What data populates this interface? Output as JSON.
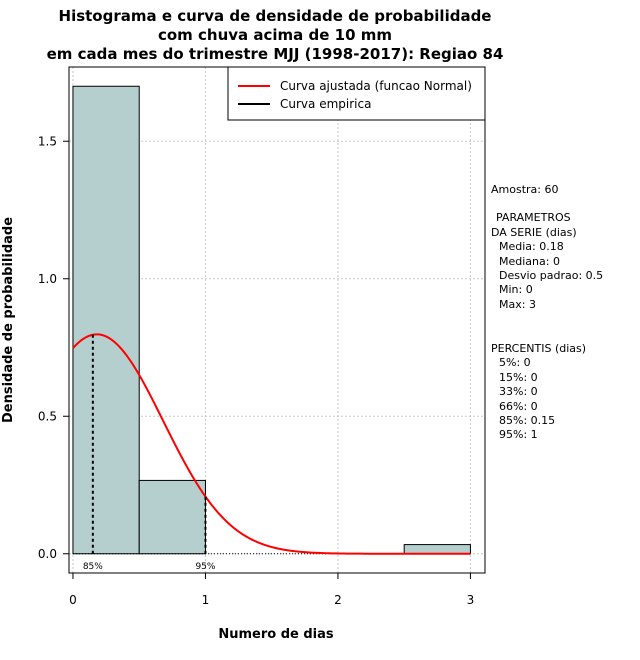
{
  "chart_data": {
    "type": "bar",
    "title": [
      "Histograma e curva de densidade de probabilidade",
      "com chuva acima de 10 mm",
      "em cada mes do trimestre MJJ (1998-2017): Regiao 84"
    ],
    "xlabel": "Numero de dias",
    "ylabel": "Densidade de probabilidade",
    "xlim": [
      -0.03,
      3.11
    ],
    "ylim": [
      -0.07,
      1.77
    ],
    "x_ticks": [
      0,
      1,
      2,
      3
    ],
    "y_ticks": [
      0.0,
      0.5,
      1.0,
      1.5
    ],
    "y_tick_labels": [
      "0.0",
      "0.5",
      "1.0",
      "1.5"
    ],
    "grid": true,
    "bins": [
      {
        "from": 0.0,
        "to": 0.5,
        "density": 1.7
      },
      {
        "from": 0.5,
        "to": 1.0,
        "density": 0.2667
      },
      {
        "from": 1.0,
        "to": 1.5,
        "density": 0.0
      },
      {
        "from": 1.5,
        "to": 2.0,
        "density": 0.0
      },
      {
        "from": 2.0,
        "to": 2.5,
        "density": 0.0
      },
      {
        "from": 2.5,
        "to": 3.0,
        "density": 0.0333
      }
    ],
    "fitted_curve": {
      "name": "Curva ajustada (funcao Normal)",
      "mean": 0.18,
      "sd": 0.5,
      "x_from": 0.0,
      "x_to": 3.0,
      "color": "#ff0000"
    },
    "empirical_curve": {
      "name": "Curva empirica",
      "color": "#000000"
    },
    "percentile_markers": [
      {
        "label": "85%",
        "x": 0.15
      },
      {
        "label": "95%",
        "x": 1.0
      }
    ],
    "legend": [
      {
        "label": "Curva ajustada (funcao Normal)",
        "color": "#ff0000"
      },
      {
        "label": "Curva empirica",
        "color": "#000000"
      }
    ],
    "legend_position": "top-right",
    "bar_color": "#b5cfcf"
  },
  "side_panel": {
    "sample": "Amostra: 60",
    "params_title_1": "PARAMETROS",
    "params_title_2": "DA SERIE (dias)",
    "params": [
      "Media: 0.18",
      "Mediana: 0",
      "Desvio padrao: 0.5",
      "Min: 0",
      "Max: 3"
    ],
    "percentis_title": "PERCENTIS (dias)",
    "percentis": [
      "5%: 0",
      "15%: 0",
      "33%: 0",
      "66%: 0",
      "85%: 0.15",
      "95%: 1"
    ]
  }
}
